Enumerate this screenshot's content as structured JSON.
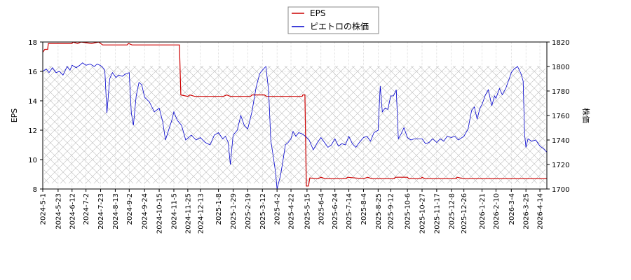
{
  "chart_data": {
    "type": "line",
    "title": "",
    "legend": {
      "placement": "top-center",
      "entries": [
        "EPS",
        "ピエトロの株価"
      ]
    },
    "y_left": {
      "label": "EPS",
      "range": [
        8,
        18
      ],
      "ticks": [
        8,
        10,
        12,
        14,
        16,
        18
      ]
    },
    "y_right": {
      "label": "株価",
      "range": [
        1700,
        1820
      ],
      "ticks": [
        1700,
        1720,
        1740,
        1760,
        1780,
        1800,
        1820
      ]
    },
    "x_ticks": [
      "2024-5-1",
      "2024-5-23",
      "2024-6-12",
      "2024-7-2",
      "2024-7-23",
      "2024-8-13",
      "2024-9-2",
      "2024-9-24",
      "2024-10-15",
      "2024-11-5",
      "2024-11-25",
      "2024-12-13",
      "2025-1-8",
      "2025-1-29",
      "2025-2-19",
      "2025-3-12",
      "2025-4-2",
      "2025-4-22",
      "2025-5-15",
      "2025-6-4",
      "2025-6-24",
      "2025-7-14",
      "2025-8-4",
      "2025-8-25",
      "2025-9-12",
      "2025-10-6",
      "2025-10-27",
      "2025-11-17",
      "2025-12-8",
      "2025-12-26",
      "2026-1-21",
      "2026-2-10",
      "2026-3-4",
      "2026-3-25",
      "2026-4-14"
    ],
    "grid": true,
    "x_range": [
      "2024-5-1",
      "2026-4-24"
    ],
    "series": [
      {
        "name": "EPS",
        "axis": "left",
        "color": "#cc0000",
        "points": [
          [
            "2024-5-1",
            17.3
          ],
          [
            "2024-5-4",
            17.5
          ],
          [
            "2024-5-8",
            17.5
          ],
          [
            "2024-5-9",
            17.9
          ],
          [
            "2024-6-12",
            17.9
          ],
          [
            "2024-6-13",
            18.0
          ],
          [
            "2024-6-20",
            17.9
          ],
          [
            "2024-6-25",
            18.0
          ],
          [
            "2024-7-10",
            17.9
          ],
          [
            "2024-7-20",
            18.0
          ],
          [
            "2024-7-26",
            17.8
          ],
          [
            "2024-8-30",
            17.8
          ],
          [
            "2024-9-1",
            17.9
          ],
          [
            "2024-9-6",
            17.8
          ],
          [
            "2024-11-13",
            17.8
          ],
          [
            "2024-11-15",
            14.4
          ],
          [
            "2024-11-25",
            14.3
          ],
          [
            "2024-11-28",
            14.4
          ],
          [
            "2024-12-5",
            14.3
          ],
          [
            "2025-1-15",
            14.3
          ],
          [
            "2025-1-20",
            14.4
          ],
          [
            "2025-1-25",
            14.3
          ],
          [
            "2025-2-23",
            14.3
          ],
          [
            "2025-2-25",
            14.4
          ],
          [
            "2025-3-15",
            14.4
          ],
          [
            "2025-3-18",
            14.3
          ],
          [
            "2025-5-8",
            14.3
          ],
          [
            "2025-5-9",
            14.4
          ],
          [
            "2025-5-12",
            14.4
          ],
          [
            "2025-5-14",
            8.2
          ],
          [
            "2025-5-17",
            8.2
          ],
          [
            "2025-5-19",
            8.75
          ],
          [
            "2025-5-31",
            8.7
          ],
          [
            "2025-6-4",
            8.8
          ],
          [
            "2025-6-10",
            8.7
          ],
          [
            "2025-7-10",
            8.7
          ],
          [
            "2025-7-12",
            8.8
          ],
          [
            "2025-8-4",
            8.7
          ],
          [
            "2025-8-10",
            8.8
          ],
          [
            "2025-8-16",
            8.7
          ],
          [
            "2025-9-17",
            8.7
          ],
          [
            "2025-9-19",
            8.8
          ],
          [
            "2025-10-6",
            8.8
          ],
          [
            "2025-10-8",
            8.7
          ],
          [
            "2025-10-25",
            8.7
          ],
          [
            "2025-10-27",
            8.8
          ],
          [
            "2025-10-31",
            8.7
          ],
          [
            "2025-12-15",
            8.7
          ],
          [
            "2025-12-16",
            8.8
          ],
          [
            "2025-12-26",
            8.7
          ],
          [
            "2026-4-24",
            8.7
          ]
        ]
      },
      {
        "name": "ピエトロの株価",
        "axis": "right",
        "color": "#0000cc",
        "points": [
          [
            "2024-5-1",
            1796
          ],
          [
            "2024-5-6",
            1798
          ],
          [
            "2024-5-10",
            1795
          ],
          [
            "2024-5-15",
            1799
          ],
          [
            "2024-5-20",
            1795
          ],
          [
            "2024-5-25",
            1796
          ],
          [
            "2024-5-30",
            1793
          ],
          [
            "2024-6-5",
            1800
          ],
          [
            "2024-6-9",
            1797
          ],
          [
            "2024-6-12",
            1801
          ],
          [
            "2024-6-18",
            1799
          ],
          [
            "2024-6-23",
            1801
          ],
          [
            "2024-6-27",
            1803
          ],
          [
            "2024-7-2",
            1801
          ],
          [
            "2024-7-8",
            1802
          ],
          [
            "2024-7-14",
            1800
          ],
          [
            "2024-7-18",
            1802
          ],
          [
            "2024-7-22",
            1801
          ],
          [
            "2024-7-25",
            1800
          ],
          [
            "2024-7-29",
            1797
          ],
          [
            "2024-8-1",
            1762
          ],
          [
            "2024-8-5",
            1790
          ],
          [
            "2024-8-9",
            1795
          ],
          [
            "2024-8-14",
            1791
          ],
          [
            "2024-8-18",
            1793
          ],
          [
            "2024-8-23",
            1792
          ],
          [
            "2024-8-28",
            1794
          ],
          [
            "2024-9-2",
            1795
          ],
          [
            "2024-9-5",
            1762
          ],
          [
            "2024-9-8",
            1752
          ],
          [
            "2024-9-12",
            1776
          ],
          [
            "2024-9-16",
            1787
          ],
          [
            "2024-9-20",
            1785
          ],
          [
            "2024-9-24",
            1775
          ],
          [
            "2024-10-1",
            1771
          ],
          [
            "2024-10-8",
            1763
          ],
          [
            "2024-10-15",
            1766
          ],
          [
            "2024-10-20",
            1755
          ],
          [
            "2024-10-24",
            1740
          ],
          [
            "2024-10-29",
            1749
          ],
          [
            "2024-11-2",
            1756
          ],
          [
            "2024-11-5",
            1763
          ],
          [
            "2024-11-10",
            1756
          ],
          [
            "2024-11-16",
            1752
          ],
          [
            "2024-11-22",
            1740
          ],
          [
            "2024-11-30",
            1744
          ],
          [
            "2024-12-7",
            1740
          ],
          [
            "2024-12-13",
            1742
          ],
          [
            "2024-12-20",
            1738
          ],
          [
            "2024-12-27",
            1736
          ],
          [
            "2025-1-2",
            1744
          ],
          [
            "2025-1-8",
            1746
          ],
          [
            "2025-1-14",
            1741
          ],
          [
            "2025-1-18",
            1743
          ],
          [
            "2025-1-22",
            1738
          ],
          [
            "2025-1-25",
            1720
          ],
          [
            "2025-1-29",
            1744
          ],
          [
            "2025-2-4",
            1748
          ],
          [
            "2025-2-9",
            1760
          ],
          [
            "2025-2-14",
            1752
          ],
          [
            "2025-2-19",
            1749
          ],
          [
            "2025-2-25",
            1763
          ],
          [
            "2025-3-3",
            1783
          ],
          [
            "2025-3-8",
            1794
          ],
          [
            "2025-3-12",
            1797
          ],
          [
            "2025-3-17",
            1800
          ],
          [
            "2025-3-21",
            1780
          ],
          [
            "2025-3-24",
            1740
          ],
          [
            "2025-3-28",
            1725
          ],
          [
            "2025-3-31",
            1713
          ],
          [
            "2025-4-2",
            1700
          ],
          [
            "2025-4-7",
            1711
          ],
          [
            "2025-4-11",
            1725
          ],
          [
            "2025-4-14",
            1736
          ],
          [
            "2025-4-18",
            1738
          ],
          [
            "2025-4-22",
            1741
          ],
          [
            "2025-4-25",
            1747
          ],
          [
            "2025-4-29",
            1743
          ],
          [
            "2025-5-3",
            1746
          ],
          [
            "2025-5-8",
            1745
          ],
          [
            "2025-5-13",
            1743
          ],
          [
            "2025-5-18",
            1740
          ],
          [
            "2025-5-24",
            1732
          ],
          [
            "2025-5-30",
            1738
          ],
          [
            "2025-6-4",
            1742
          ],
          [
            "2025-6-9",
            1738
          ],
          [
            "2025-6-14",
            1734
          ],
          [
            "2025-6-19",
            1736
          ],
          [
            "2025-6-24",
            1741
          ],
          [
            "2025-6-29",
            1735
          ],
          [
            "2025-7-4",
            1737
          ],
          [
            "2025-7-9",
            1736
          ],
          [
            "2025-7-14",
            1743
          ],
          [
            "2025-7-19",
            1737
          ],
          [
            "2025-7-24",
            1734
          ],
          [
            "2025-7-29",
            1738
          ],
          [
            "2025-8-4",
            1742
          ],
          [
            "2025-8-9",
            1743
          ],
          [
            "2025-8-14",
            1739
          ],
          [
            "2025-8-19",
            1746
          ],
          [
            "2025-8-25",
            1748
          ],
          [
            "2025-8-28",
            1784
          ],
          [
            "2025-8-31",
            1763
          ],
          [
            "2025-9-4",
            1766
          ],
          [
            "2025-9-8",
            1765
          ],
          [
            "2025-9-12",
            1776
          ],
          [
            "2025-9-16",
            1776
          ],
          [
            "2025-9-20",
            1781
          ],
          [
            "2025-9-23",
            1741
          ],
          [
            "2025-9-27",
            1745
          ],
          [
            "2025-10-1",
            1750
          ],
          [
            "2025-10-6",
            1742
          ],
          [
            "2025-10-11",
            1740
          ],
          [
            "2025-10-16",
            1741
          ],
          [
            "2025-10-21",
            1741
          ],
          [
            "2025-10-27",
            1741
          ],
          [
            "2025-11-1",
            1737
          ],
          [
            "2025-11-6",
            1738
          ],
          [
            "2025-11-11",
            1741
          ],
          [
            "2025-11-17",
            1738
          ],
          [
            "2025-11-22",
            1741
          ],
          [
            "2025-11-27",
            1739
          ],
          [
            "2025-12-2",
            1743
          ],
          [
            "2025-12-8",
            1742
          ],
          [
            "2025-12-13",
            1743
          ],
          [
            "2025-12-18",
            1740
          ],
          [
            "2025-12-26",
            1743
          ],
          [
            "2026-1-1",
            1749
          ],
          [
            "2026-1-6",
            1764
          ],
          [
            "2026-1-10",
            1767
          ],
          [
            "2026-1-14",
            1757
          ],
          [
            "2026-1-18",
            1766
          ],
          [
            "2026-1-21",
            1769
          ],
          [
            "2026-1-26",
            1777
          ],
          [
            "2026-1-30",
            1781
          ],
          [
            "2026-2-4",
            1768
          ],
          [
            "2026-2-8",
            1776
          ],
          [
            "2026-2-10",
            1774
          ],
          [
            "2026-2-15",
            1782
          ],
          [
            "2026-2-19",
            1777
          ],
          [
            "2026-2-24",
            1782
          ],
          [
            "2026-3-1",
            1790
          ],
          [
            "2026-3-4",
            1795
          ],
          [
            "2026-3-8",
            1798
          ],
          [
            "2026-3-13",
            1800
          ],
          [
            "2026-3-18",
            1794
          ],
          [
            "2026-3-21",
            1788
          ],
          [
            "2026-3-23",
            1745
          ],
          [
            "2026-3-25",
            1734
          ],
          [
            "2026-3-28",
            1741
          ],
          [
            "2026-4-2",
            1739
          ],
          [
            "2026-4-8",
            1740
          ],
          [
            "2026-4-14",
            1735
          ],
          [
            "2026-4-19",
            1733
          ],
          [
            "2026-4-24",
            1730
          ]
        ]
      }
    ]
  }
}
